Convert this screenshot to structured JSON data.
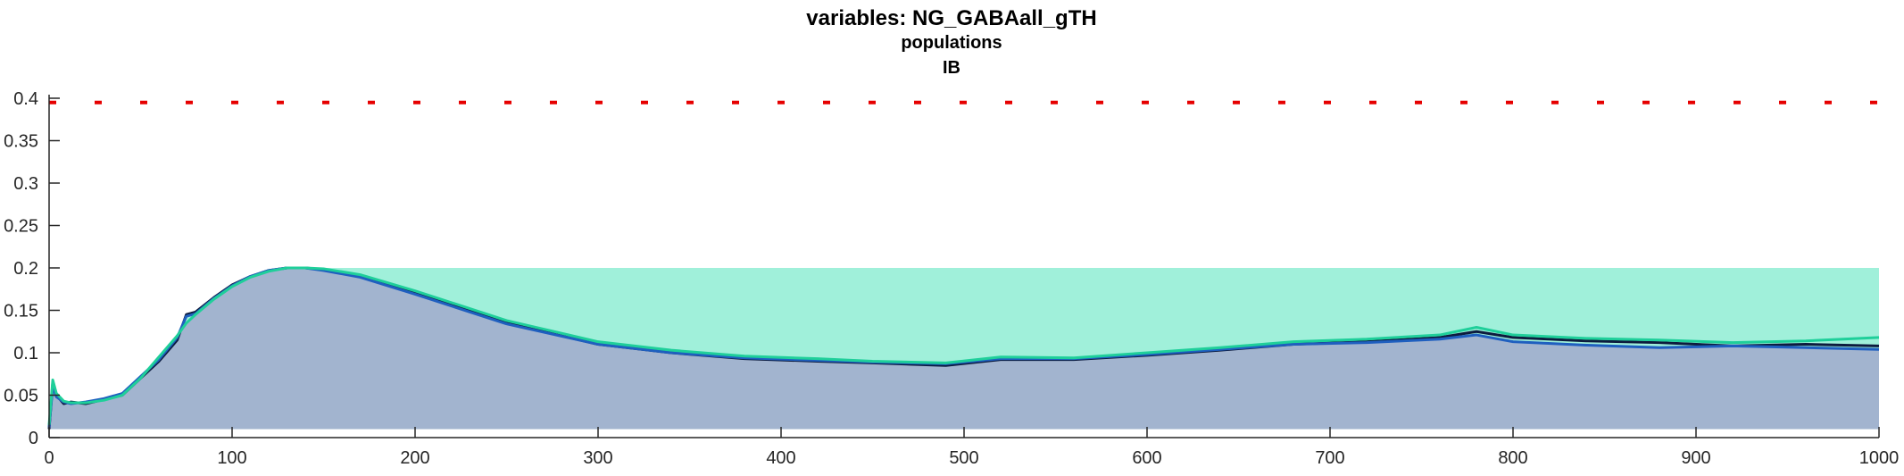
{
  "chart_data": {
    "type": "area",
    "title": "variables: NG_GABAall_gTH",
    "subtitle_lines": [
      "populations",
      "IB"
    ],
    "xlabel": "",
    "ylabel": "",
    "xlim": [
      0,
      1000
    ],
    "ylim": [
      0,
      0.4
    ],
    "grid": false,
    "xticks": [
      0,
      100,
      200,
      300,
      400,
      500,
      600,
      700,
      800,
      900,
      1000
    ],
    "yticks": [
      0,
      0.05,
      0.1,
      0.15,
      0.2,
      0.25,
      0.3,
      0.35,
      0.4
    ],
    "ytick_labels": [
      "0",
      "0.05",
      "0.1",
      "0.15",
      "0.2",
      "0.25",
      "0.3",
      "0.35",
      "0.4"
    ],
    "envelope": {
      "base": 0.01,
      "upper": 0.2,
      "upper_color": "#a0f0da",
      "lower_color": "#a2b4cf"
    },
    "series": [
      {
        "color": "#0d1b3e",
        "x": [
          0,
          2,
          4,
          8,
          12,
          20,
          30,
          40,
          50,
          60,
          70,
          75,
          80,
          90,
          100,
          110,
          120,
          130,
          140,
          150,
          170,
          200,
          250,
          300,
          340,
          380,
          420,
          450,
          490,
          520,
          560,
          600,
          640,
          680,
          720,
          760,
          780,
          800,
          840,
          880,
          920,
          960,
          1000
        ],
        "y": [
          0.01,
          0.065,
          0.05,
          0.04,
          0.042,
          0.04,
          0.045,
          0.05,
          0.07,
          0.09,
          0.115,
          0.145,
          0.148,
          0.165,
          0.18,
          0.19,
          0.197,
          0.2,
          0.2,
          0.198,
          0.19,
          0.17,
          0.135,
          0.11,
          0.1,
          0.093,
          0.09,
          0.088,
          0.085,
          0.092,
          0.092,
          0.097,
          0.103,
          0.11,
          0.113,
          0.118,
          0.125,
          0.118,
          0.114,
          0.112,
          0.108,
          0.11,
          0.108
        ]
      },
      {
        "color": "#1f5fbf",
        "x": [
          0,
          2,
          4,
          8,
          12,
          20,
          30,
          40,
          50,
          60,
          70,
          75,
          80,
          90,
          100,
          110,
          120,
          130,
          140,
          150,
          170,
          200,
          250,
          300,
          340,
          380,
          420,
          450,
          490,
          520,
          560,
          600,
          640,
          680,
          720,
          760,
          780,
          800,
          840,
          880,
          920,
          960,
          1000
        ],
        "y": [
          0.012,
          0.06,
          0.048,
          0.042,
          0.04,
          0.042,
          0.046,
          0.052,
          0.072,
          0.092,
          0.118,
          0.143,
          0.146,
          0.164,
          0.179,
          0.19,
          0.197,
          0.2,
          0.2,
          0.197,
          0.189,
          0.169,
          0.134,
          0.11,
          0.1,
          0.094,
          0.091,
          0.089,
          0.087,
          0.093,
          0.093,
          0.098,
          0.104,
          0.11,
          0.112,
          0.116,
          0.121,
          0.113,
          0.109,
          0.106,
          0.108,
          0.106,
          0.104
        ]
      },
      {
        "color": "#1fcf9a",
        "x": [
          0,
          2,
          4,
          8,
          12,
          20,
          30,
          40,
          50,
          60,
          70,
          75,
          80,
          90,
          100,
          110,
          120,
          130,
          140,
          150,
          170,
          200,
          250,
          300,
          340,
          380,
          420,
          450,
          490,
          520,
          560,
          600,
          640,
          680,
          720,
          760,
          780,
          800,
          840,
          880,
          920,
          960,
          1000
        ],
        "y": [
          0.015,
          0.068,
          0.052,
          0.043,
          0.041,
          0.041,
          0.044,
          0.05,
          0.07,
          0.095,
          0.12,
          0.135,
          0.145,
          0.163,
          0.178,
          0.189,
          0.196,
          0.2,
          0.2,
          0.199,
          0.192,
          0.173,
          0.138,
          0.113,
          0.103,
          0.096,
          0.093,
          0.09,
          0.088,
          0.095,
          0.094,
          0.1,
          0.106,
          0.113,
          0.116,
          0.121,
          0.13,
          0.121,
          0.117,
          0.115,
          0.112,
          0.114,
          0.118
        ]
      }
    ],
    "threshold": {
      "y": 0.395,
      "color": "#e60000",
      "style": "dashed"
    }
  }
}
